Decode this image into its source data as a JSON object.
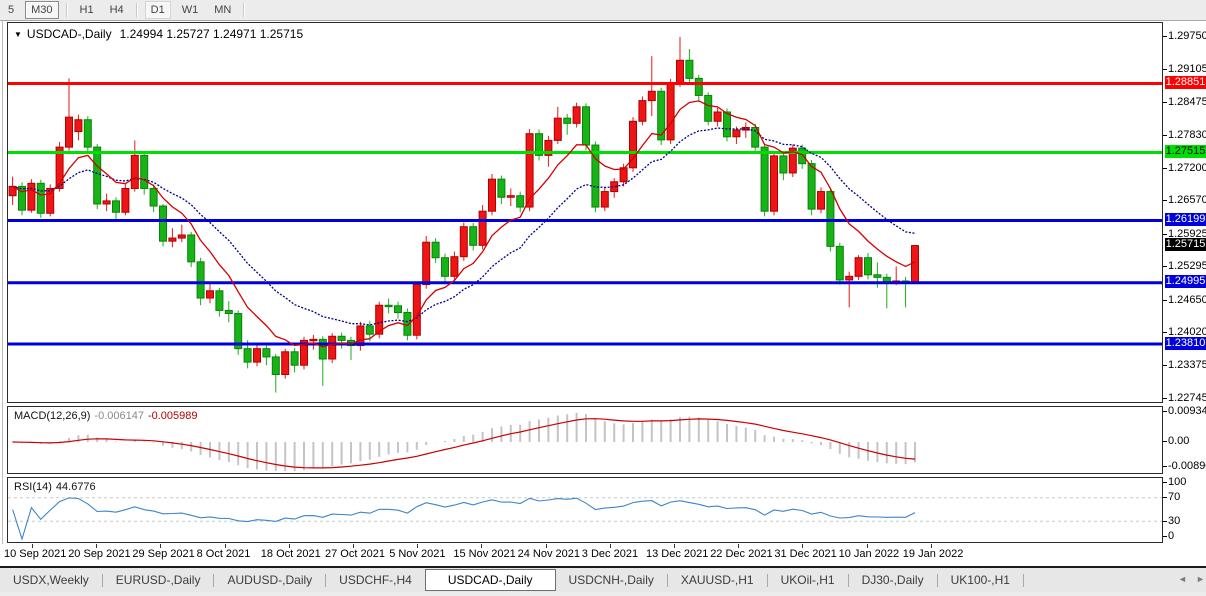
{
  "toolbar": {
    "timeframes": [
      {
        "label": "5",
        "pressed": false,
        "highlight": false,
        "sep_after": false
      },
      {
        "label": "M30",
        "pressed": true,
        "highlight": false,
        "sep_after": true
      },
      {
        "label": "H1",
        "pressed": false,
        "highlight": false,
        "sep_after": false
      },
      {
        "label": "H4",
        "pressed": false,
        "highlight": false,
        "sep_after": true
      },
      {
        "label": "D1",
        "pressed": false,
        "highlight": true,
        "sep_after": false
      },
      {
        "label": "W1",
        "pressed": false,
        "highlight": false,
        "sep_after": false
      },
      {
        "label": "MN",
        "pressed": false,
        "highlight": false,
        "sep_after": true
      }
    ]
  },
  "chart": {
    "title": {
      "dropdown_icon": "▼",
      "symbol": "USDCAD-,Daily",
      "ohlc": "1.24994 1.25727 1.24971 1.25715"
    }
  },
  "chart_data": {
    "type": "candlestick",
    "symbol": "USDCAD-",
    "timeframe": "Daily",
    "current_bar": {
      "open": 1.24994,
      "high": 1.25727,
      "low": 1.24971,
      "close": 1.25715
    },
    "up_color": "#ed1515",
    "down_color": "#17b317",
    "ma_fast": {
      "period": 8,
      "color": "#d40000"
    },
    "ma_slow": {
      "period": 18,
      "color": "#000090"
    },
    "h_lines": [
      {
        "price": 1.28851,
        "color": "#ff0000"
      },
      {
        "price": 1.27515,
        "color": "#00e000"
      },
      {
        "price": 1.26199,
        "color": "#0000dd"
      },
      {
        "price": 1.24995,
        "color": "#0000dd"
      },
      {
        "price": 1.2381,
        "color": "#0000dd"
      }
    ],
    "y_ticks": [
      "1.29750",
      "1.29105",
      "1.28475",
      "1.27830",
      "1.27200",
      "1.26570",
      "1.25925",
      "1.25295",
      "1.24650",
      "1.24020",
      "1.23375",
      "1.22745"
    ],
    "price_tags": [
      {
        "text": "1.28851",
        "price": 1.28851,
        "bg": "#ff0000",
        "fg": "#ffffff"
      },
      {
        "text": "1.27515",
        "price": 1.27515,
        "bg": "#00e000",
        "fg": "#000000"
      },
      {
        "text": "1.26199",
        "price": 1.26199,
        "bg": "#0000dd",
        "fg": "#ffffff"
      },
      {
        "text": "1.25715",
        "price": 1.25715,
        "bg": "#000000",
        "fg": "#ffffff"
      },
      {
        "text": "1.24995",
        "price": 1.24995,
        "bg": "#0000dd",
        "fg": "#ffffff"
      },
      {
        "text": "1.23810",
        "price": 1.2381,
        "bg": "#0000dd",
        "fg": "#ffffff"
      }
    ],
    "x_labels": [
      "10 Sep 2021",
      "20 Sep 2021",
      "29 Sep 2021",
      "8 Oct 2021",
      "18 Oct 2021",
      "27 Oct 2021",
      "5 Nov 2021",
      "15 Nov 2021",
      "24 Nov 2021",
      "3 Dec 2021",
      "13 Dec 2021",
      "22 Dec 2021",
      "31 Dec 2021",
      "10 Jan 2022",
      "19 Jan 2022"
    ],
    "candles": [
      [
        1.2668,
        1.2705,
        1.265,
        1.2686
      ],
      [
        1.2686,
        1.2694,
        1.263,
        1.264
      ],
      [
        1.264,
        1.27,
        1.2635,
        1.2692
      ],
      [
        1.2692,
        1.2699,
        1.2625,
        1.2634
      ],
      [
        1.2634,
        1.269,
        1.2628,
        1.2682
      ],
      [
        1.2682,
        1.2772,
        1.2676,
        1.2762
      ],
      [
        1.2762,
        1.2895,
        1.2755,
        1.282
      ],
      [
        1.2792,
        1.2825,
        1.2775,
        1.2815
      ],
      [
        1.2815,
        1.2822,
        1.2752,
        1.2762
      ],
      [
        1.2762,
        1.2768,
        1.2642,
        1.2652
      ],
      [
        1.2652,
        1.2672,
        1.2638,
        1.2658
      ],
      [
        1.2658,
        1.2665,
        1.2618,
        1.2636
      ],
      [
        1.2636,
        1.269,
        1.263,
        1.2682
      ],
      [
        1.2682,
        1.2775,
        1.2676,
        1.2746
      ],
      [
        1.2746,
        1.2752,
        1.267,
        1.2682
      ],
      [
        1.2682,
        1.269,
        1.2636,
        1.2648
      ],
      [
        1.2648,
        1.2652,
        1.257,
        1.258
      ],
      [
        1.258,
        1.2605,
        1.2568,
        1.2586
      ],
      [
        1.2586,
        1.2612,
        1.2578,
        1.2592
      ],
      [
        1.2592,
        1.2598,
        1.253,
        1.254
      ],
      [
        1.254,
        1.2548,
        1.2456,
        1.247
      ],
      [
        1.247,
        1.2502,
        1.246,
        1.2484
      ],
      [
        1.2484,
        1.249,
        1.2434,
        1.2446
      ],
      [
        1.2446,
        1.2464,
        1.2423,
        1.244
      ],
      [
        1.244,
        1.2446,
        1.236,
        1.2372
      ],
      [
        1.2372,
        1.2388,
        1.2334,
        1.2346
      ],
      [
        1.2346,
        1.2382,
        1.2338,
        1.2372
      ],
      [
        1.2372,
        1.2378,
        1.234,
        1.2356
      ],
      [
        1.2356,
        1.2362,
        1.2287,
        1.2322
      ],
      [
        1.2322,
        1.2372,
        1.2314,
        1.2366
      ],
      [
        1.2366,
        1.2373,
        1.2326,
        1.234
      ],
      [
        1.234,
        1.2395,
        1.2332,
        1.2388
      ],
      [
        1.2388,
        1.2399,
        1.237,
        1.239
      ],
      [
        1.239,
        1.2396,
        1.23,
        1.2352
      ],
      [
        1.2352,
        1.2402,
        1.2344,
        1.2396
      ],
      [
        1.2396,
        1.2403,
        1.2372,
        1.2388
      ],
      [
        1.2388,
        1.2395,
        1.235,
        1.2378
      ],
      [
        1.2378,
        1.2424,
        1.2368,
        1.2416
      ],
      [
        1.2416,
        1.2426,
        1.2386,
        1.24
      ],
      [
        1.24,
        1.2463,
        1.2392,
        1.2456
      ],
      [
        1.2456,
        1.2469,
        1.244,
        1.2455
      ],
      [
        1.2455,
        1.2463,
        1.243,
        1.2442
      ],
      [
        1.2442,
        1.245,
        1.2388,
        1.2398
      ],
      [
        1.2398,
        1.2502,
        1.239,
        1.2496
      ],
      [
        1.2496,
        1.259,
        1.2488,
        1.2578
      ],
      [
        1.2578,
        1.2586,
        1.2538,
        1.2548
      ],
      [
        1.2548,
        1.2556,
        1.25,
        1.2512
      ],
      [
        1.2512,
        1.256,
        1.2504,
        1.255
      ],
      [
        1.255,
        1.2616,
        1.2542,
        1.2608
      ],
      [
        1.2608,
        1.2615,
        1.2562,
        1.2572
      ],
      [
        1.2572,
        1.265,
        1.2564,
        1.2638
      ],
      [
        1.2638,
        1.271,
        1.263,
        1.27
      ],
      [
        1.27,
        1.2707,
        1.2652,
        1.2665
      ],
      [
        1.2665,
        1.2682,
        1.2648,
        1.2668
      ],
      [
        1.2668,
        1.2676,
        1.2636,
        1.2646
      ],
      [
        1.2646,
        1.2797,
        1.2638,
        1.2788
      ],
      [
        1.2788,
        1.2796,
        1.2736,
        1.2746
      ],
      [
        1.2746,
        1.2784,
        1.2724,
        1.2775
      ],
      [
        1.2775,
        1.284,
        1.2768,
        1.2818
      ],
      [
        1.2818,
        1.2826,
        1.2786,
        1.2808
      ],
      [
        1.2808,
        1.2848,
        1.28,
        1.284
      ],
      [
        1.284,
        1.2847,
        1.2756,
        1.2766
      ],
      [
        1.2766,
        1.2773,
        1.2636,
        1.2646
      ],
      [
        1.2646,
        1.2684,
        1.2638,
        1.2676
      ],
      [
        1.2676,
        1.2702,
        1.2664,
        1.2695
      ],
      [
        1.2695,
        1.273,
        1.2686,
        1.2722
      ],
      [
        1.2722,
        1.282,
        1.2714,
        1.2812
      ],
      [
        1.2812,
        1.286,
        1.2804,
        1.2852
      ],
      [
        1.2852,
        1.2938,
        1.2822,
        1.287
      ],
      [
        1.287,
        1.2877,
        1.2766,
        1.2776
      ],
      [
        1.2776,
        1.2894,
        1.2768,
        1.2886
      ],
      [
        1.2886,
        1.2975,
        1.2878,
        1.293
      ],
      [
        1.293,
        1.2952,
        1.2886,
        1.2895
      ],
      [
        1.2895,
        1.2902,
        1.285,
        1.2862
      ],
      [
        1.2862,
        1.2868,
        1.2804,
        1.2812
      ],
      [
        1.2812,
        1.2838,
        1.2802,
        1.283
      ],
      [
        1.283,
        1.2837,
        1.2773,
        1.2782
      ],
      [
        1.2782,
        1.2802,
        1.2768,
        1.2795
      ],
      [
        1.2795,
        1.281,
        1.278,
        1.28
      ],
      [
        1.28,
        1.2807,
        1.2753,
        1.2762
      ],
      [
        1.2762,
        1.2769,
        1.2628,
        1.2638
      ],
      [
        1.2638,
        1.2752,
        1.263,
        1.2745
      ],
      [
        1.2745,
        1.2753,
        1.2698,
        1.2712
      ],
      [
        1.2712,
        1.2767,
        1.2704,
        1.276
      ],
      [
        1.276,
        1.2767,
        1.272,
        1.273
      ],
      [
        1.273,
        1.2737,
        1.263,
        1.2642
      ],
      [
        1.2642,
        1.2684,
        1.2634,
        1.2676
      ],
      [
        1.2676,
        1.2683,
        1.256,
        1.257
      ],
      [
        1.257,
        1.2577,
        1.2496,
        1.2505
      ],
      [
        1.2505,
        1.2521,
        1.2452,
        1.2512
      ],
      [
        1.2512,
        1.2553,
        1.2505,
        1.2548
      ],
      [
        1.2548,
        1.2557,
        1.2506,
        1.2515
      ],
      [
        1.2515,
        1.2539,
        1.249,
        1.251
      ],
      [
        1.251,
        1.2517,
        1.245,
        1.2502
      ],
      [
        1.2502,
        1.2531,
        1.2495,
        1.2503
      ],
      [
        1.2503,
        1.2511,
        1.2452,
        1.25
      ],
      [
        1.24994,
        1.25727,
        1.24971,
        1.25715
      ]
    ]
  },
  "macd_panel": {
    "label": "MACD(12,26,9)",
    "main_value": "-0.006147",
    "signal_value": "-0.005989",
    "params": {
      "fast": 12,
      "slow": 26,
      "signal": 9
    },
    "axis": [
      "0.009345",
      "0.00",
      "-0.00890"
    ],
    "histogram_color": "#c4c4c4",
    "signal_color": "#cc0000"
  },
  "rsi_panel": {
    "label": "RSI(14)",
    "value": "44.6776",
    "period": 14,
    "axis": [
      "100",
      "70",
      "30",
      "0"
    ],
    "levels": [
      70,
      30
    ],
    "line_color": "#3d85c8",
    "level_color": "#c8c8c8"
  },
  "tabs": {
    "items": [
      {
        "label": "USDX,Weekly",
        "active": false
      },
      {
        "label": "EURUSD-,Daily",
        "active": false
      },
      {
        "label": "AUDUSD-,Daily",
        "active": false
      },
      {
        "label": "USDCHF-,H4",
        "active": false
      },
      {
        "label": "USDCAD-,Daily",
        "active": true
      },
      {
        "label": "USDCNH-,Daily",
        "active": false
      },
      {
        "label": "XAUUSD-,H1",
        "active": false
      },
      {
        "label": "UKOil-,H1",
        "active": false
      },
      {
        "label": "DJ30-,Daily",
        "active": false
      },
      {
        "label": "UK100-,H1",
        "active": false
      }
    ],
    "scroll_left_icon": "◄",
    "scroll_right_icon": "►"
  }
}
